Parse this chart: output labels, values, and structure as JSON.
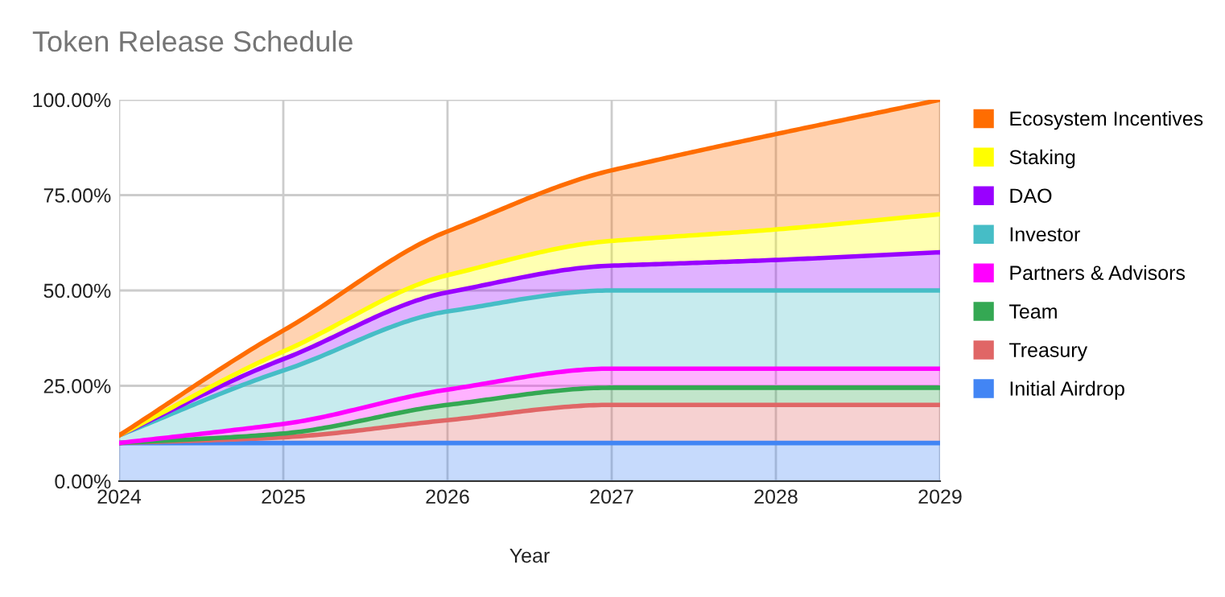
{
  "chart_data": {
    "type": "area",
    "stacked": true,
    "title": "Token Release Schedule",
    "xlabel": "Year",
    "x": [
      2024,
      2025,
      2026,
      2027,
      2028,
      2029
    ],
    "xlim": [
      2024,
      2029
    ],
    "xticks": [
      2024,
      2025,
      2026,
      2027,
      2028,
      2029
    ],
    "ylim": [
      0,
      100
    ],
    "yticks": [
      {
        "value": 0,
        "label": "0.00%"
      },
      {
        "value": 25,
        "label": "25.00%"
      },
      {
        "value": 50,
        "label": "50.00%"
      },
      {
        "value": 75,
        "label": "75.00%"
      },
      {
        "value": 100,
        "label": "100.00%"
      }
    ],
    "grid": true,
    "legend": "right",
    "series": [
      {
        "name": "Initial Airdrop",
        "color": "#4285f4",
        "values": [
          10,
          10,
          10,
          10,
          10,
          10
        ]
      },
      {
        "name": "Treasury",
        "color": "#e06666",
        "values": [
          0,
          1.5,
          6,
          10,
          10,
          10
        ]
      },
      {
        "name": "Team",
        "color": "#34a853",
        "values": [
          0,
          1,
          4,
          4.5,
          4.5,
          4.5
        ]
      },
      {
        "name": "Partners & Advisors",
        "color": "#ff00ff",
        "values": [
          0,
          2.5,
          4,
          5,
          5,
          5
        ]
      },
      {
        "name": "Investor",
        "color": "#46bdc6",
        "values": [
          2,
          14,
          20.5,
          20.5,
          20.5,
          20.5
        ]
      },
      {
        "name": "DAO",
        "color": "#9900ff",
        "values": [
          0,
          3,
          5,
          6.5,
          8,
          10
        ]
      },
      {
        "name": "Staking",
        "color": "#ffff00",
        "values": [
          0,
          2,
          4.5,
          6.5,
          8,
          10
        ]
      },
      {
        "name": "Ecosystem Incentives",
        "color": "#ff6d01",
        "values": [
          0,
          5.5,
          11.5,
          18.5,
          25,
          30
        ]
      }
    ]
  }
}
